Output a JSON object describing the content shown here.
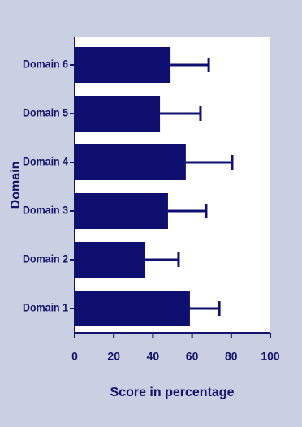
{
  "chart_data": {
    "type": "bar",
    "orientation": "horizontal",
    "x_label": "Score in percentage",
    "y_label": "Domain",
    "categories": [
      "Domain 1",
      "Domain 2",
      "Domain 3",
      "Domain 4",
      "Domain 5",
      "Domain 6"
    ],
    "values": [
      58.9,
      36.1,
      47.7,
      56.8,
      43.6,
      49
    ],
    "errors": [
      15,
      17,
      19.5,
      23.7,
      20.7,
      19.5
    ],
    "color": "#0f0f70",
    "xlim": [
      0,
      100
    ],
    "xticks": [
      0,
      20,
      40,
      60,
      80,
      100
    ]
  }
}
